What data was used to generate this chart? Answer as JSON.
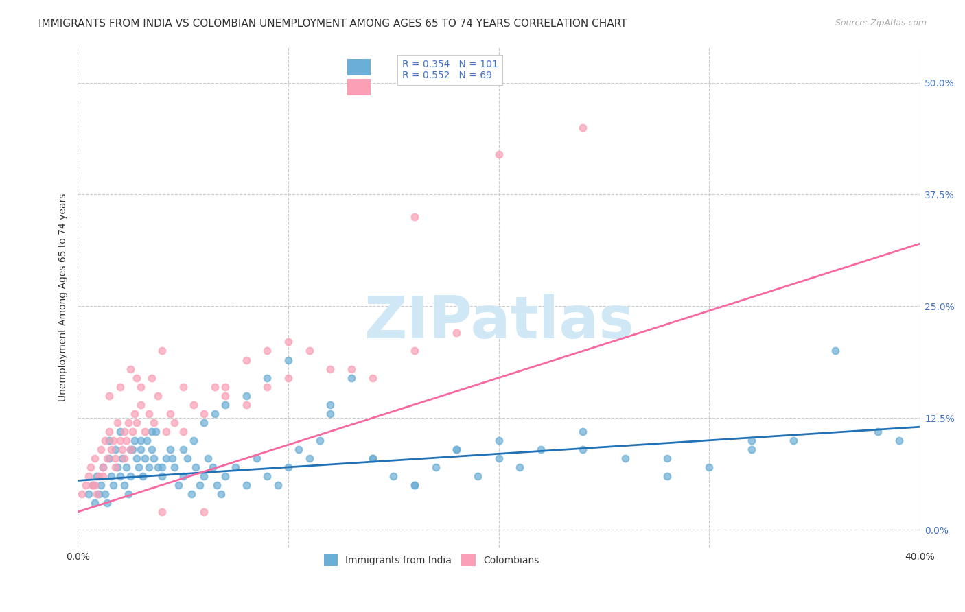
{
  "title": "IMMIGRANTS FROM INDIA VS COLOMBIAN UNEMPLOYMENT AMONG AGES 65 TO 74 YEARS CORRELATION CHART",
  "source": "Source: ZipAtlas.com",
  "ylabel": "Unemployment Among Ages 65 to 74 years",
  "ytick_labels": [
    "0.0%",
    "12.5%",
    "25.0%",
    "37.5%",
    "50.0%"
  ],
  "ytick_values": [
    0.0,
    0.125,
    0.25,
    0.375,
    0.5
  ],
  "xlim": [
    0.0,
    0.4
  ],
  "ylim": [
    -0.02,
    0.54
  ],
  "legend_label1": "Immigrants from India",
  "legend_label2": "Colombians",
  "R1": "0.354",
  "N1": "101",
  "R2": "0.552",
  "N2": "69",
  "color_blue": "#6baed6",
  "color_pink": "#fa9fb5",
  "line_color_blue": "#2171b5",
  "line_color_pink": "#f768a1",
  "background_color": "#ffffff",
  "watermark_color": "#d0e8f5",
  "title_fontsize": 11,
  "axis_label_fontsize": 10,
  "tick_fontsize": 10,
  "legend_fontsize": 10,
  "blue_scatter_x": [
    0.005,
    0.007,
    0.008,
    0.009,
    0.01,
    0.011,
    0.012,
    0.013,
    0.014,
    0.015,
    0.016,
    0.017,
    0.018,
    0.019,
    0.02,
    0.021,
    0.022,
    0.023,
    0.024,
    0.025,
    0.026,
    0.027,
    0.028,
    0.029,
    0.03,
    0.031,
    0.032,
    0.033,
    0.034,
    0.035,
    0.036,
    0.037,
    0.038,
    0.04,
    0.042,
    0.044,
    0.046,
    0.048,
    0.05,
    0.052,
    0.054,
    0.056,
    0.058,
    0.06,
    0.062,
    0.064,
    0.066,
    0.068,
    0.07,
    0.075,
    0.08,
    0.085,
    0.09,
    0.095,
    0.1,
    0.105,
    0.11,
    0.115,
    0.12,
    0.13,
    0.14,
    0.15,
    0.16,
    0.17,
    0.18,
    0.19,
    0.2,
    0.21,
    0.22,
    0.24,
    0.26,
    0.28,
    0.3,
    0.32,
    0.34,
    0.015,
    0.02,
    0.025,
    0.03,
    0.035,
    0.04,
    0.045,
    0.05,
    0.055,
    0.06,
    0.065,
    0.07,
    0.08,
    0.09,
    0.1,
    0.12,
    0.14,
    0.16,
    0.18,
    0.2,
    0.24,
    0.28,
    0.32,
    0.36,
    0.38,
    0.39
  ],
  "blue_scatter_y": [
    0.04,
    0.05,
    0.03,
    0.06,
    0.04,
    0.05,
    0.07,
    0.04,
    0.03,
    0.08,
    0.06,
    0.05,
    0.09,
    0.07,
    0.06,
    0.08,
    0.05,
    0.07,
    0.04,
    0.06,
    0.09,
    0.1,
    0.08,
    0.07,
    0.09,
    0.06,
    0.08,
    0.1,
    0.07,
    0.09,
    0.08,
    0.11,
    0.07,
    0.06,
    0.08,
    0.09,
    0.07,
    0.05,
    0.06,
    0.08,
    0.04,
    0.07,
    0.05,
    0.06,
    0.08,
    0.07,
    0.05,
    0.04,
    0.06,
    0.07,
    0.05,
    0.08,
    0.06,
    0.05,
    0.07,
    0.09,
    0.08,
    0.1,
    0.14,
    0.17,
    0.08,
    0.06,
    0.05,
    0.07,
    0.09,
    0.06,
    0.08,
    0.07,
    0.09,
    0.11,
    0.08,
    0.06,
    0.07,
    0.09,
    0.1,
    0.1,
    0.11,
    0.09,
    0.1,
    0.11,
    0.07,
    0.08,
    0.09,
    0.1,
    0.12,
    0.13,
    0.14,
    0.15,
    0.17,
    0.19,
    0.13,
    0.08,
    0.05,
    0.09,
    0.1,
    0.09,
    0.08,
    0.1,
    0.2,
    0.11,
    0.1
  ],
  "pink_scatter_x": [
    0.002,
    0.004,
    0.005,
    0.006,
    0.007,
    0.008,
    0.009,
    0.01,
    0.011,
    0.012,
    0.013,
    0.014,
    0.015,
    0.016,
    0.017,
    0.018,
    0.019,
    0.02,
    0.021,
    0.022,
    0.023,
    0.024,
    0.025,
    0.026,
    0.027,
    0.028,
    0.03,
    0.032,
    0.034,
    0.036,
    0.038,
    0.04,
    0.042,
    0.044,
    0.046,
    0.05,
    0.055,
    0.06,
    0.065,
    0.07,
    0.08,
    0.09,
    0.1,
    0.12,
    0.14,
    0.16,
    0.18,
    0.008,
    0.012,
    0.015,
    0.018,
    0.02,
    0.022,
    0.025,
    0.028,
    0.03,
    0.035,
    0.04,
    0.05,
    0.06,
    0.07,
    0.08,
    0.09,
    0.1,
    0.11,
    0.13,
    0.16,
    0.2,
    0.24
  ],
  "pink_scatter_y": [
    0.04,
    0.05,
    0.06,
    0.07,
    0.05,
    0.08,
    0.04,
    0.06,
    0.09,
    0.07,
    0.1,
    0.08,
    0.11,
    0.09,
    0.1,
    0.08,
    0.12,
    0.1,
    0.09,
    0.11,
    0.1,
    0.12,
    0.09,
    0.11,
    0.13,
    0.12,
    0.14,
    0.11,
    0.13,
    0.12,
    0.15,
    0.2,
    0.11,
    0.13,
    0.12,
    0.11,
    0.14,
    0.13,
    0.16,
    0.15,
    0.14,
    0.16,
    0.17,
    0.18,
    0.17,
    0.2,
    0.22,
    0.05,
    0.06,
    0.15,
    0.07,
    0.16,
    0.08,
    0.18,
    0.17,
    0.16,
    0.17,
    0.02,
    0.16,
    0.02,
    0.16,
    0.19,
    0.2,
    0.21,
    0.2,
    0.18,
    0.35,
    0.42,
    0.45
  ],
  "blue_line_x": [
    0.0,
    0.4
  ],
  "blue_line_y": [
    0.055,
    0.115
  ],
  "pink_line_x": [
    0.0,
    0.4
  ],
  "pink_line_y": [
    0.02,
    0.32
  ]
}
